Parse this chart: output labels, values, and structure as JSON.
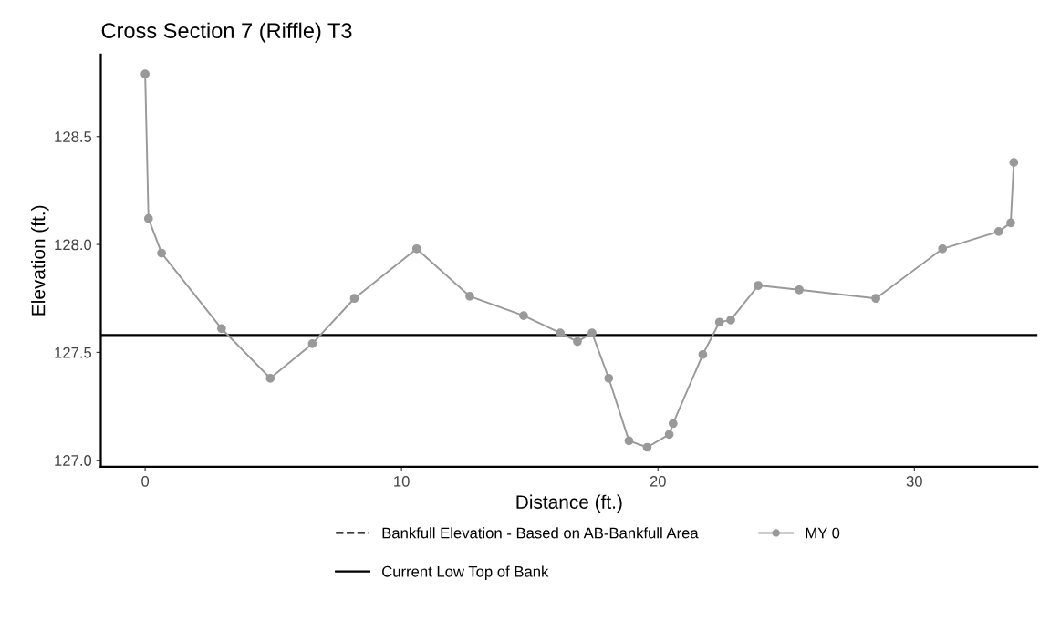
{
  "chart_data": {
    "type": "line",
    "title": "Cross Section 7 (Riffle) T3",
    "xlabel": "Distance (ft.)",
    "ylabel": "Elevation (ft.)",
    "xlim": [
      -1.73,
      34.8
    ],
    "ylim": [
      126.97,
      128.88
    ],
    "xticks": [
      0,
      10,
      20,
      30
    ],
    "yticks": [
      {
        "value": 127,
        "label": "127.0"
      },
      127.5,
      {
        "value": 128,
        "label": "128.0"
      },
      128.5
    ],
    "grid": false,
    "legend": "bottom",
    "marker": "circle",
    "line_style": "solid",
    "series": [
      {
        "name": "MY 0",
        "color": "#999999",
        "x": [
          0,
          0.13,
          0.64,
          2.98,
          4.88,
          6.52,
          8.16,
          10.59,
          12.66,
          14.76,
          16.19,
          16.86,
          17.43,
          18.08,
          18.87,
          19.58,
          20.44,
          20.59,
          21.75,
          22.4,
          22.84,
          23.91,
          25.51,
          28.5,
          31.1,
          33.29,
          33.76,
          33.88
        ],
        "values": [
          128.79,
          128.12,
          127.96,
          127.61,
          127.38,
          127.54,
          127.75,
          127.98,
          127.76,
          127.67,
          127.59,
          127.55,
          127.59,
          127.38,
          127.09,
          127.06,
          127.12,
          127.17,
          127.49,
          127.64,
          127.65,
          127.81,
          127.79,
          127.75,
          127.98,
          128.06,
          128.1,
          128.38
        ]
      }
    ],
    "ref_lines": [
      {
        "axis": "y",
        "value": null,
        "label": "Bankfull Elevation - Based on AB-Bankfull Area",
        "color": "#000000",
        "line_style": "dashed"
      },
      {
        "axis": "y",
        "value": 127.58,
        "label": "Current Low Top of Bank",
        "color": "#000000",
        "line_style": "solid"
      }
    ]
  }
}
